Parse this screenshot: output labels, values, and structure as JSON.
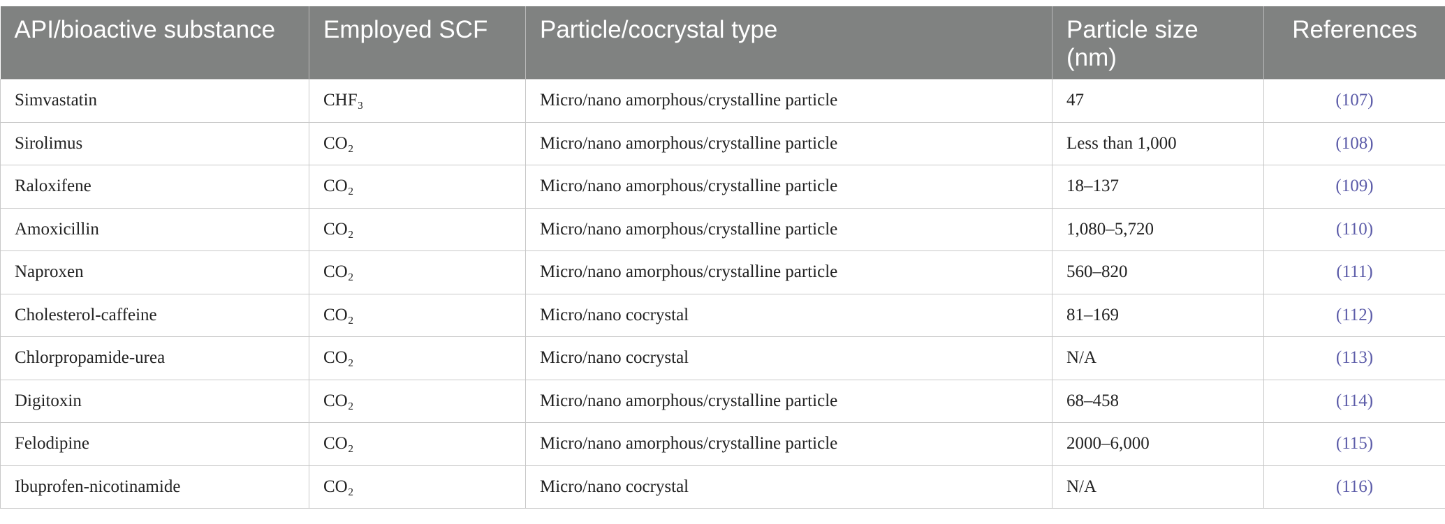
{
  "table": {
    "header": [
      "API/bioactive substance",
      "Employed SCF",
      "Particle/cocrystal type",
      "Particle size (nm)",
      "References"
    ],
    "rows": [
      [
        "Simvastatin",
        "CHF₃",
        "Micro/nano amorphous/crystalline particle",
        "47",
        "(107)"
      ],
      [
        "Sirolimus",
        "CO₂",
        "Micro/nano amorphous/crystalline particle",
        "Less than 1,000",
        "(108)"
      ],
      [
        "Raloxifene",
        "CO₂",
        "Micro/nano amorphous/crystalline particle",
        "18–137",
        "(109)"
      ],
      [
        "Amoxicillin",
        "CO₂",
        "Micro/nano amorphous/crystalline particle",
        "1,080–5,720",
        "(110)"
      ],
      [
        "Naproxen",
        "CO₂",
        "Micro/nano amorphous/crystalline particle",
        "560–820",
        "(111)"
      ],
      [
        "Cholesterol-caffeine",
        "CO₂",
        "Micro/nano cocrystal",
        "81–169",
        "(112)"
      ],
      [
        "Chlorpropamide-urea",
        "CO₂",
        "Micro/nano cocrystal",
        "N/A",
        "(113)"
      ],
      [
        "Digitoxin",
        "CO₂",
        "Micro/nano amorphous/crystalline particle",
        "68–458",
        "(114)"
      ],
      [
        "Felodipine",
        "CO₂",
        "Micro/nano amorphous/crystalline particle",
        "2000–6,000",
        "(115)"
      ],
      [
        "Ibuprofen-nicotinamide",
        "CO₂",
        "Micro/nano cocrystal",
        "N/A",
        "(116)"
      ]
    ]
  }
}
